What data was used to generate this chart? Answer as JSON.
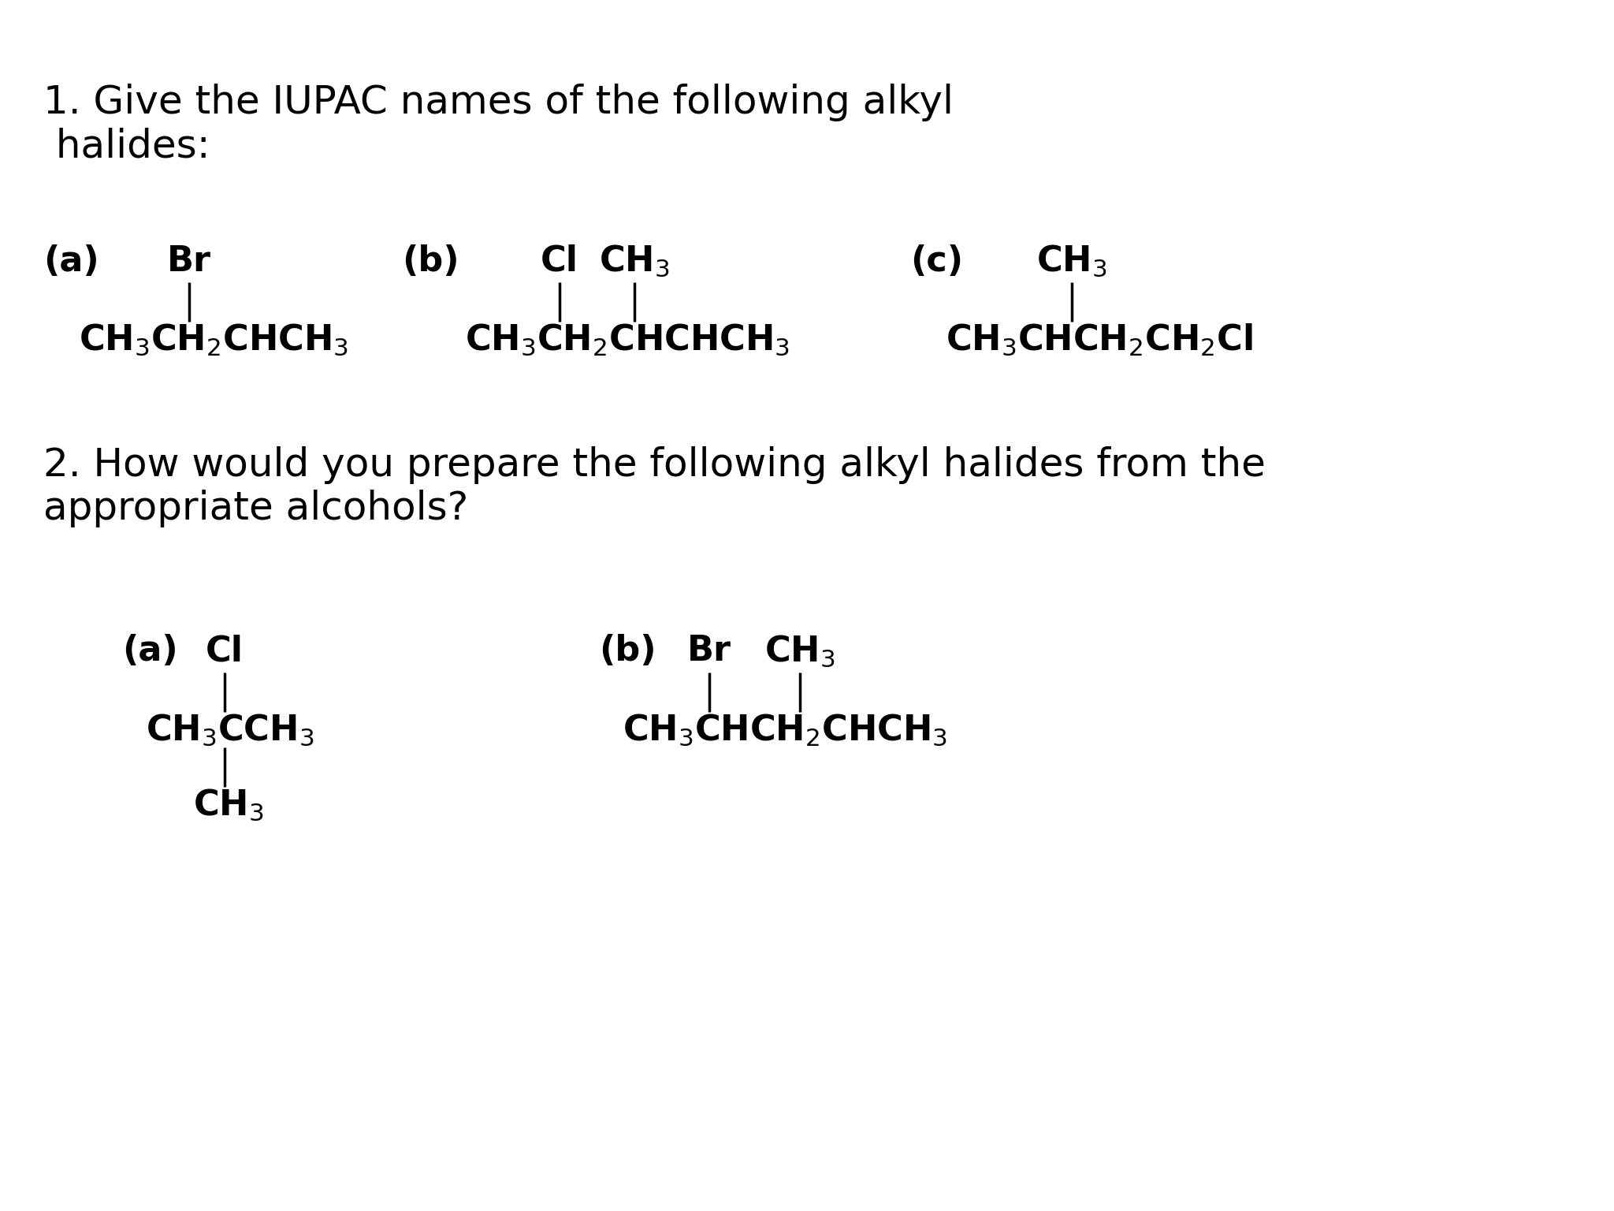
{
  "bg_color": "#ffffff",
  "text_color": "#000000",
  "title1_line1": "1. Give the IUPAC names of the following alkyl",
  "title1_line2": " halides:",
  "title2_line1": "2. How would you prepare the following alkyl halides from the",
  "title2_line2": "appropriate alcohols?",
  "font_size_title": 36,
  "font_size_label": 32,
  "font_size_formula": 32,
  "lw": 2.5
}
